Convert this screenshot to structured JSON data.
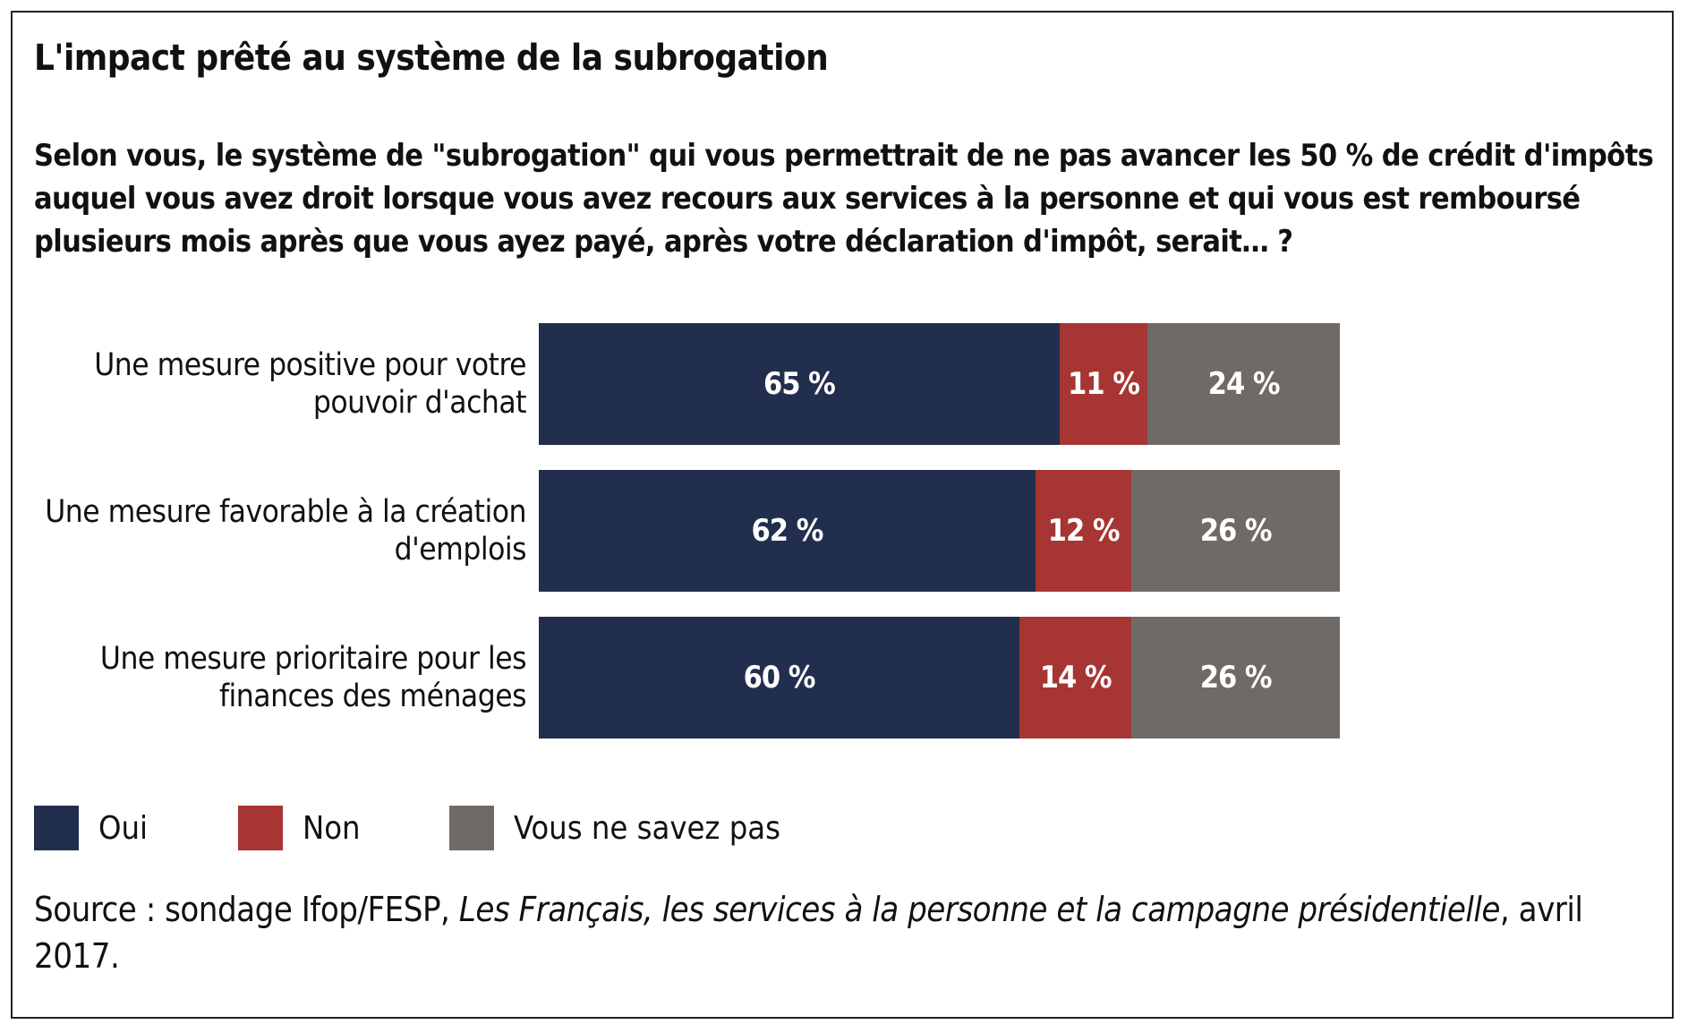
{
  "chart_data": {
    "type": "bar",
    "orientation": "horizontal-stacked-100",
    "title": "L'impact prêté au système de la subrogation",
    "subtitle": "Selon vous, le système de \"subrogation\" qui vous permettrait de ne pas avancer les 50 % de crédit d'impôts auquel vous avez droit lorsque vous avez recours aux services à la personne et qui vous est remboursé plusieurs mois après que vous ayez payé, après votre déclaration d'impôt, serait… ?",
    "categories": [
      "Une mesure positive pour votre pouvoir d'achat",
      "Une mesure favorable à la création d'emplois",
      "Une mesure prioritaire pour les finances des ménages"
    ],
    "series": [
      {
        "name": "Oui",
        "color": "#222e4d",
        "values": [
          65,
          62,
          60
        ],
        "labels": [
          "65 %",
          "62 %",
          "60 %"
        ]
      },
      {
        "name": "Non",
        "color": "#a63533",
        "values": [
          11,
          12,
          14
        ],
        "labels": [
          "11 %",
          "12 %",
          "14 %"
        ]
      },
      {
        "name": "Vous ne savez pas",
        "color": "#706a66",
        "values": [
          24,
          26,
          26
        ],
        "labels": [
          "24 %",
          "26 %",
          "26 %"
        ]
      }
    ],
    "xlim": [
      0,
      100
    ],
    "legend": "bottom-left",
    "grid": false
  },
  "source": {
    "prefix": "Source : sondage Ifop/FESP, ",
    "italic": "Les Français, les services à la personne et la campagne présidentielle",
    "suffix": ", avril 2017."
  }
}
